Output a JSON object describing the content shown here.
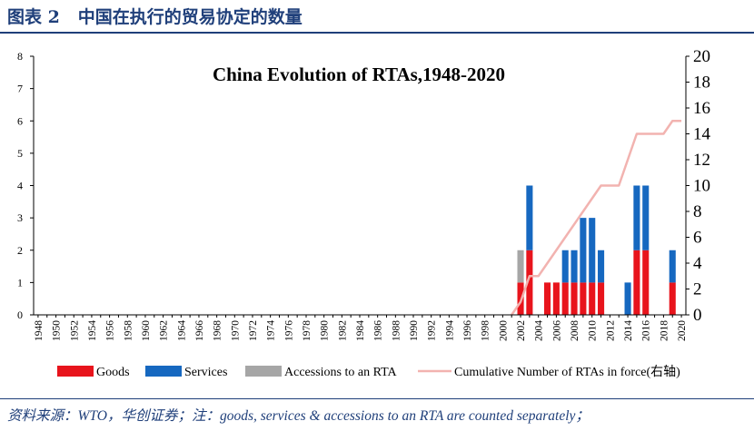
{
  "figure": {
    "label": "图表 2",
    "caption": "中国在执行的贸易协定的数量"
  },
  "source_note": "资料来源：WTO，华创证券；注：goods, services & accessions to an RTA are counted separately；",
  "colors": {
    "goods": "#e8141c",
    "services": "#1668c0",
    "accessions": "#a6a6a6",
    "cumulative": "#f2b3b0",
    "axis": "#000000",
    "title_blue": "#1f3f7a"
  },
  "chart_data": {
    "type": "bar",
    "title": "China Evolution of RTAs,1948-2020",
    "x": [
      1948,
      1949,
      1950,
      1951,
      1952,
      1953,
      1954,
      1955,
      1956,
      1957,
      1958,
      1959,
      1960,
      1961,
      1962,
      1963,
      1964,
      1965,
      1966,
      1967,
      1968,
      1969,
      1970,
      1971,
      1972,
      1973,
      1974,
      1975,
      1976,
      1977,
      1978,
      1979,
      1980,
      1981,
      1982,
      1983,
      1984,
      1985,
      1986,
      1987,
      1988,
      1989,
      1990,
      1991,
      1992,
      1993,
      1994,
      1995,
      1996,
      1997,
      1998,
      1999,
      2000,
      2001,
      2002,
      2003,
      2004,
      2005,
      2006,
      2007,
      2008,
      2009,
      2010,
      2011,
      2012,
      2013,
      2014,
      2015,
      2016,
      2017,
      2018,
      2019,
      2020
    ],
    "x_tick_labels": [
      "1948",
      "1950",
      "1952",
      "1954",
      "1956",
      "1958",
      "1960",
      "1962",
      "1964",
      "1966",
      "1968",
      "1970",
      "1972",
      "1974",
      "1976",
      "1978",
      "1980",
      "1982",
      "1984",
      "1986",
      "1988",
      "1990",
      "1992",
      "1994",
      "1996",
      "1998",
      "2000",
      "2002",
      "2004",
      "2006",
      "2008",
      "2010",
      "2012",
      "2014",
      "2016",
      "2018",
      "2020"
    ],
    "stacked": true,
    "series": [
      {
        "name": "Goods",
        "axis": "left",
        "type": "bar",
        "values": {
          "2002": 1,
          "2003": 2,
          "2005": 1,
          "2006": 1,
          "2007": 1,
          "2008": 1,
          "2009": 1,
          "2010": 1,
          "2011": 1,
          "2015": 2,
          "2016": 2,
          "2019": 1
        }
      },
      {
        "name": "Services",
        "axis": "left",
        "type": "bar",
        "values": {
          "2003": 2,
          "2007": 1,
          "2008": 1,
          "2009": 2,
          "2010": 2,
          "2011": 1,
          "2014": 1,
          "2015": 2,
          "2016": 2,
          "2019": 1
        }
      },
      {
        "name": "Accessions to an RTA",
        "axis": "left",
        "type": "bar",
        "values": {
          "2002": 1
        }
      },
      {
        "name": "Cumulative Number of RTAs in force(右轴)",
        "axis": "right",
        "type": "line",
        "values": {
          "2001": 0,
          "2002": 1,
          "2003": 3,
          "2004": 3,
          "2005": 4,
          "2006": 5,
          "2007": 6,
          "2008": 7,
          "2009": 8,
          "2010": 9,
          "2011": 10,
          "2012": 10,
          "2013": 10,
          "2014": 12,
          "2015": 14,
          "2016": 14,
          "2017": 14,
          "2018": 14,
          "2019": 15,
          "2020": 15
        }
      }
    ],
    "y_left": {
      "min": 0,
      "max": 8,
      "ticks": [
        "0",
        "1",
        "2",
        "3",
        "4",
        "5",
        "6",
        "7",
        "8"
      ]
    },
    "y_right": {
      "min": 0,
      "max": 20,
      "ticks": [
        "0",
        "2",
        "4",
        "6",
        "8",
        "10",
        "12",
        "14",
        "16",
        "18",
        "20"
      ]
    },
    "legend": {
      "position": "bottom"
    }
  }
}
